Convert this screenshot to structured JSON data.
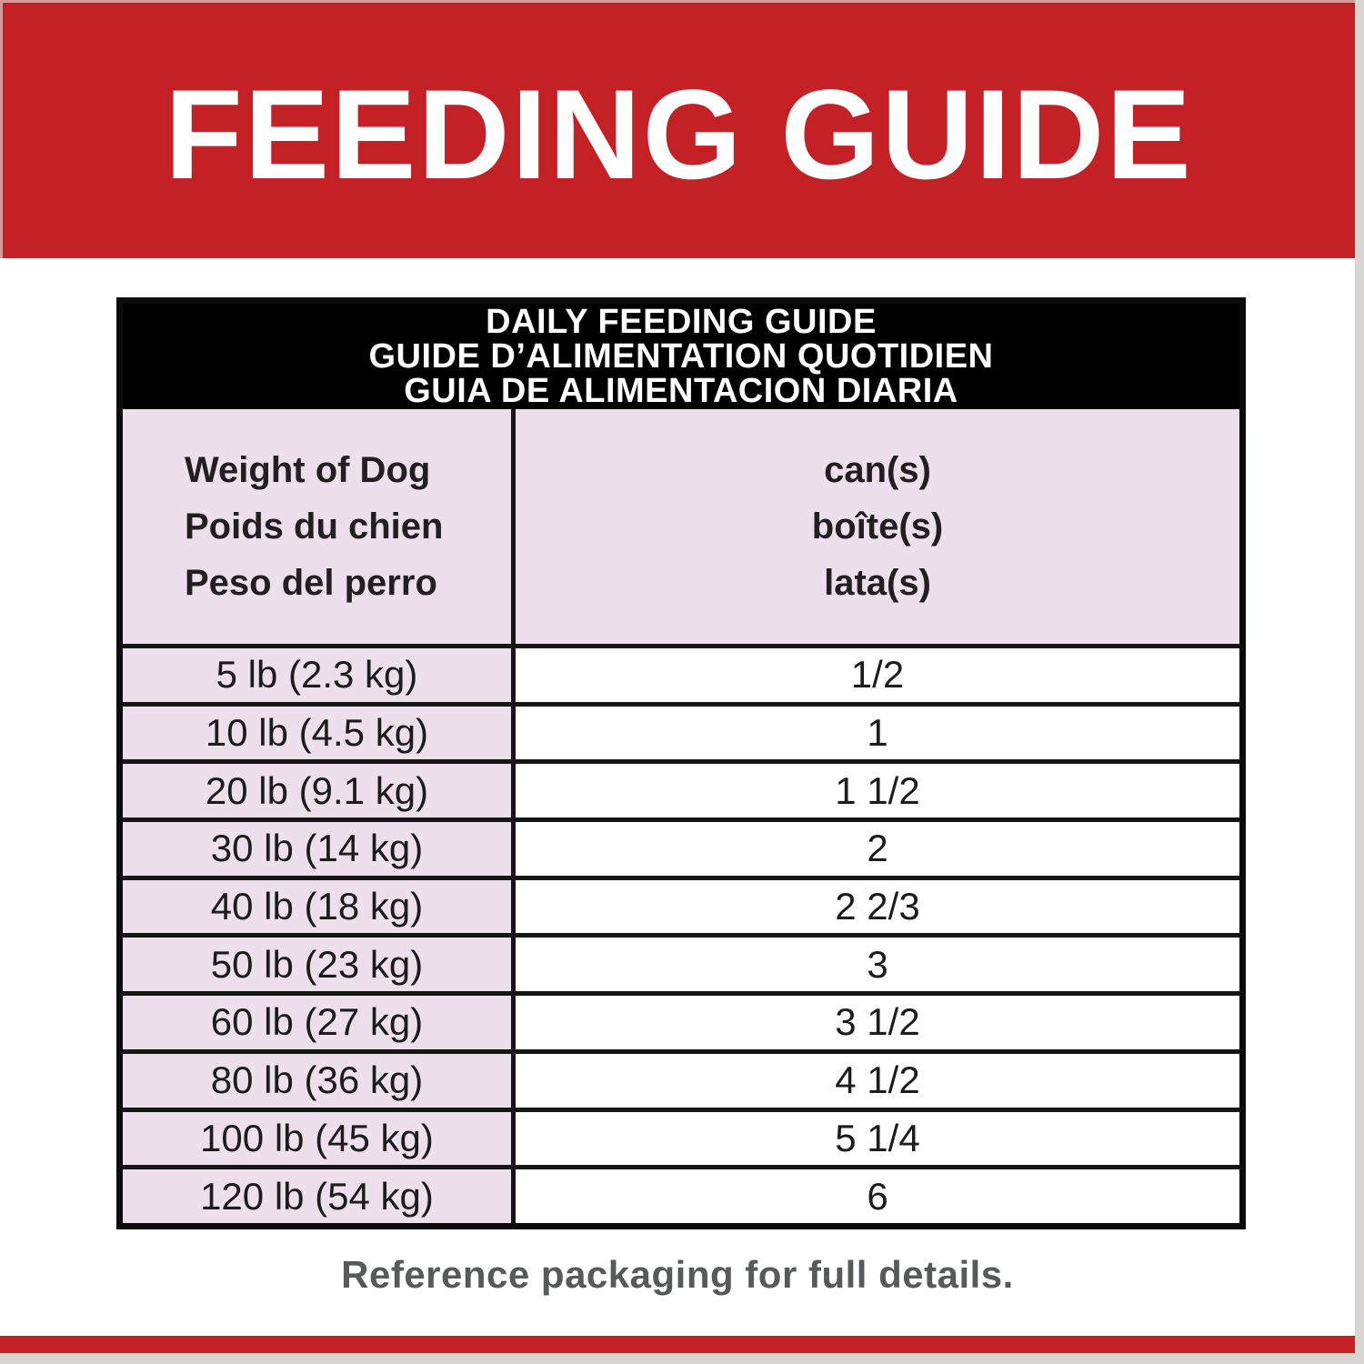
{
  "banner": {
    "title": "FEEDING GUIDE"
  },
  "table": {
    "title_lines": [
      "DAILY FEEDING GUIDE",
      "GUIDE D’ALIMENTATION QUOTIDIEN",
      "GUIA DE ALIMENTACION DIARIA"
    ],
    "columns": {
      "weight": {
        "lines": [
          "Weight of Dog",
          "Poids du chien",
          "Peso del perro"
        ]
      },
      "cans": {
        "lines": [
          "can(s)",
          "boîte(s)",
          "lata(s)"
        ]
      }
    },
    "rows": [
      {
        "weight": "5 lb (2.3 kg)",
        "cans": "1/2"
      },
      {
        "weight": "10 lb (4.5 kg)",
        "cans": "1"
      },
      {
        "weight": "20 lb (9.1 kg)",
        "cans": "1 1/2"
      },
      {
        "weight": "30 lb (14 kg)",
        "cans": "2"
      },
      {
        "weight": "40 lb (18 kg)",
        "cans": "2 2/3"
      },
      {
        "weight": "50 lb (23 kg)",
        "cans": "3"
      },
      {
        "weight": "60 lb (27 kg)",
        "cans": "3 1/2"
      },
      {
        "weight": "80 lb (36 kg)",
        "cans": "4 1/2"
      },
      {
        "weight": "100 lb (45 kg)",
        "cans": "5 1/4"
      },
      {
        "weight": "120 lb (54 kg)",
        "cans": "6"
      }
    ]
  },
  "footer": {
    "note": "Reference packaging for full details."
  },
  "colors": {
    "brand_red": "#c42127",
    "header_pink": "#eddfeb",
    "table_header_black": "#000000",
    "note_gray": "#58595b",
    "edge_gray": "#d9d5d2"
  }
}
